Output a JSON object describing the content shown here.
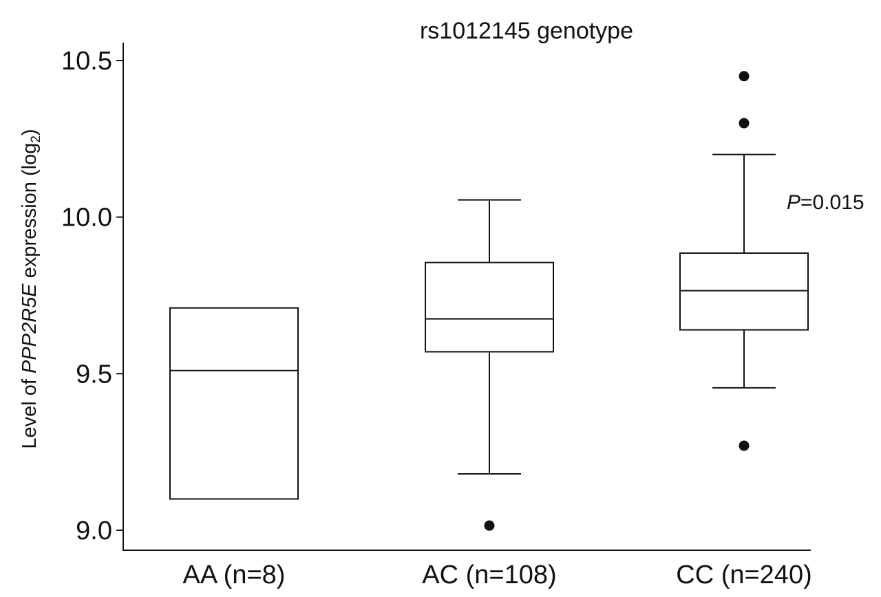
{
  "chart_data": {
    "type": "box",
    "title": "rs1012145 genotype",
    "ylabel": {
      "prefix": "Level of ",
      "gene": "PPP2R5E",
      "middle": " expression (log",
      "sub": "2",
      "suffix": ")"
    },
    "xlabel": "",
    "ylim": [
      8.95,
      10.56
    ],
    "yticks": [
      {
        "value": 9.0,
        "label": "9.0"
      },
      {
        "value": 9.5,
        "label": "9.5"
      },
      {
        "value": 10.0,
        "label": "10.0"
      },
      {
        "value": 10.5,
        "label": "10.5"
      }
    ],
    "categories": [
      "AA (n=8)",
      "AC (n=108)",
      "CC (n=240)"
    ],
    "boxes": [
      {
        "category": "AA (n=8)",
        "q1": 9.1,
        "median": 9.51,
        "q3": 9.71,
        "whisker_low": null,
        "whisker_high": null,
        "outliers": []
      },
      {
        "category": "AC (n=108)",
        "q1": 9.57,
        "median": 9.675,
        "q3": 9.855,
        "whisker_low": 9.18,
        "whisker_high": 10.055,
        "outliers": [
          9.015
        ]
      },
      {
        "category": "CC (n=240)",
        "q1": 9.64,
        "median": 9.765,
        "q3": 9.885,
        "whisker_low": 9.455,
        "whisker_high": 10.2,
        "outliers": [
          9.27,
          10.3,
          10.45
        ]
      }
    ],
    "annotation": {
      "italic": "P",
      "text": "=0.015"
    },
    "grid": false,
    "colors": {
      "line": "#111111",
      "box_fill": "#ffffff",
      "outlier": "#111111"
    }
  }
}
